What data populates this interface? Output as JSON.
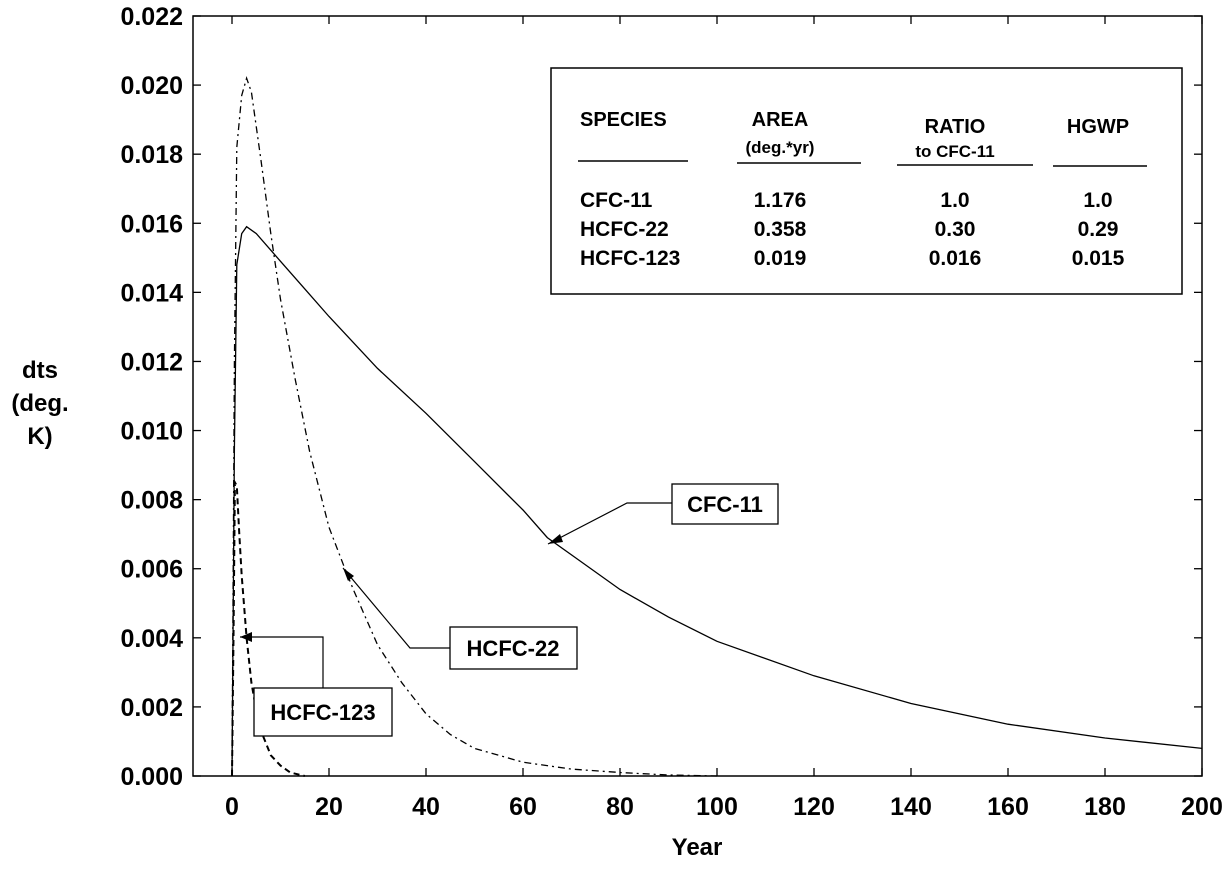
{
  "chart_data": {
    "type": "line",
    "xlabel": "Year",
    "ylabel_lines": [
      "dts",
      "(deg.",
      "K)"
    ],
    "xlim": [
      -5,
      200
    ],
    "ylim": [
      0,
      0.022
    ],
    "x_ticks": [
      0,
      20,
      40,
      60,
      80,
      100,
      120,
      140,
      160,
      180,
      200
    ],
    "x_tick_labels": [
      "0",
      "20",
      "40",
      "60",
      "80",
      "100",
      "120",
      "140",
      "160",
      "180",
      "200"
    ],
    "y_ticks": [
      0,
      0.002,
      0.004,
      0.006,
      0.008,
      0.01,
      0.012,
      0.014,
      0.016,
      0.018,
      0.02,
      0.022
    ],
    "y_tick_labels": [
      "0.000",
      "0.002",
      "0.004",
      "0.006",
      "0.008",
      "0.010",
      "0.012",
      "0.014",
      "0.016",
      "0.018",
      "0.020",
      "0.022"
    ],
    "grid": false,
    "series": [
      {
        "name": "CFC-11",
        "style": "solid",
        "x": [
          0,
          0.5,
          1,
          2,
          3,
          5,
          10,
          15,
          20,
          30,
          40,
          50,
          60,
          65,
          70,
          80,
          90,
          100,
          120,
          140,
          160,
          180,
          200
        ],
        "y": [
          0,
          0.0095,
          0.0148,
          0.0157,
          0.0159,
          0.0157,
          0.0149,
          0.0141,
          0.0133,
          0.0118,
          0.0105,
          0.0091,
          0.0077,
          0.0069,
          0.0064,
          0.0054,
          0.0046,
          0.0039,
          0.0029,
          0.0021,
          0.0015,
          0.0011,
          0.0008
        ]
      },
      {
        "name": "HCFC-22",
        "style": "dash-dot",
        "x": [
          0,
          0.5,
          1,
          2,
          3,
          4,
          6,
          8,
          10,
          13,
          16,
          20,
          23,
          25,
          30,
          35,
          40,
          45,
          50,
          60,
          70,
          80,
          90,
          100
        ],
        "y": [
          0,
          0.012,
          0.0182,
          0.0197,
          0.0202,
          0.0198,
          0.0178,
          0.0157,
          0.0138,
          0.0115,
          0.0094,
          0.0072,
          0.0061,
          0.0054,
          0.0038,
          0.0027,
          0.0018,
          0.0012,
          0.0008,
          0.0004,
          0.0002,
          0.0001,
          3e-05,
          0
        ]
      },
      {
        "name": "HCFC-123",
        "style": "dashed",
        "x": [
          0,
          0.3,
          0.6,
          1,
          1.5,
          2,
          3,
          4,
          5,
          6,
          8,
          10,
          12,
          15
        ],
        "y": [
          0,
          0.004,
          0.0085,
          0.0084,
          0.007,
          0.0058,
          0.004,
          0.0027,
          0.0019,
          0.0013,
          0.0006,
          0.0003,
          0.0001,
          0
        ]
      }
    ],
    "callouts": [
      {
        "label": "CFC-11",
        "target": [
          65,
          0.0068
        ]
      },
      {
        "label": "HCFC-22",
        "target": [
          23,
          0.0061
        ]
      },
      {
        "label": "HCFC-123",
        "target": [
          2,
          0.004
        ]
      }
    ],
    "table": {
      "headers": [
        {
          "main": "SPECIES",
          "sub": ""
        },
        {
          "main": "AREA",
          "sub": "(deg.*yr)"
        },
        {
          "main": "RATIO",
          "sub": "to CFC-11"
        },
        {
          "main": "HGWP",
          "sub": ""
        }
      ],
      "rows": [
        [
          "CFC-11",
          "1.176",
          "1.0",
          "1.0"
        ],
        [
          "HCFC-22",
          "0.358",
          "0.30",
          "0.29"
        ],
        [
          "HCFC-123",
          "0.019",
          "0.016",
          "0.015"
        ]
      ]
    },
    "colors": {
      "line": "#000000",
      "background": "#ffffff"
    }
  }
}
